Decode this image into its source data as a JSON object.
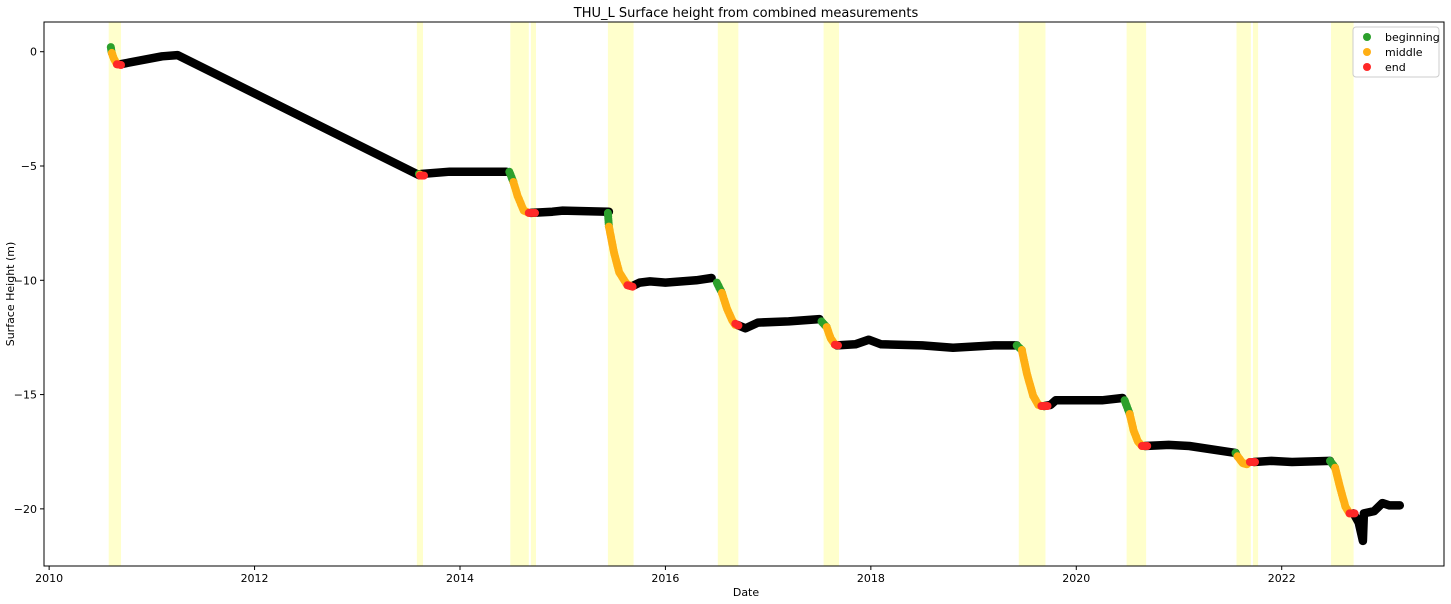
{
  "chart_data": {
    "type": "scatter",
    "title": "THU_L Surface height from combined measurements",
    "xlabel": "Date",
    "ylabel": "Surface Height (m)",
    "xlim": [
      2009.95,
      2023.58
    ],
    "ylim": [
      -22.5,
      1.3
    ],
    "xticks": [
      2010,
      2012,
      2014,
      2016,
      2018,
      2020,
      2022
    ],
    "yticks": [
      0,
      -5,
      -10,
      -15,
      -20
    ],
    "legend": {
      "position": "upper right",
      "entries": [
        "beginning",
        "middle",
        "end"
      ]
    },
    "colors": {
      "beginning": "#2ca02c",
      "middle": "#ffaf14",
      "end": "#ff2828",
      "background": "#000000",
      "shading": "#ffffcc"
    },
    "shaded_periods": [
      [
        2010.58,
        2010.7
      ],
      [
        2013.58,
        2013.64
      ],
      [
        2014.49,
        2014.67
      ],
      [
        2014.69,
        2014.74
      ],
      [
        2015.44,
        2015.69
      ],
      [
        2016.51,
        2016.71
      ],
      [
        2017.54,
        2017.69
      ],
      [
        2019.44,
        2019.7
      ],
      [
        2020.49,
        2020.68
      ],
      [
        2021.56,
        2021.7
      ],
      [
        2021.72,
        2021.77
      ],
      [
        2022.48,
        2022.7
      ]
    ],
    "background_series": [
      [
        [
          2010.69,
          -0.55
        ],
        [
          2011.1,
          -0.2
        ],
        [
          2011.25,
          -0.15
        ],
        [
          2013.6,
          -5.4
        ]
      ],
      [
        [
          2013.62,
          -5.35
        ],
        [
          2013.9,
          -5.25
        ],
        [
          2014.45,
          -5.25
        ]
      ],
      [
        [
          2014.69,
          -7.05
        ],
        [
          2014.9,
          -7.0
        ],
        [
          2015.0,
          -6.95
        ],
        [
          2015.45,
          -7.0
        ]
      ],
      [
        [
          2015.68,
          -10.25
        ],
        [
          2015.75,
          -10.1
        ],
        [
          2015.85,
          -10.05
        ],
        [
          2016.0,
          -10.1
        ],
        [
          2016.3,
          -10.0
        ],
        [
          2016.45,
          -9.9
        ]
      ],
      [
        [
          2016.7,
          -11.95
        ],
        [
          2016.78,
          -12.1
        ],
        [
          2016.9,
          -11.85
        ],
        [
          2017.2,
          -11.8
        ],
        [
          2017.5,
          -11.7
        ]
      ],
      [
        [
          2017.67,
          -12.85
        ],
        [
          2017.85,
          -12.8
        ],
        [
          2017.98,
          -12.6
        ],
        [
          2018.1,
          -12.8
        ],
        [
          2018.5,
          -12.85
        ],
        [
          2018.8,
          -12.95
        ],
        [
          2019.2,
          -12.85
        ],
        [
          2019.42,
          -12.85
        ]
      ],
      [
        [
          2019.69,
          -15.5
        ],
        [
          2019.75,
          -15.45
        ],
        [
          2019.8,
          -15.25
        ],
        [
          2019.95,
          -15.25
        ],
        [
          2020.25,
          -15.25
        ],
        [
          2020.45,
          -15.15
        ]
      ],
      [
        [
          2020.67,
          -17.25
        ],
        [
          2020.9,
          -17.2
        ],
        [
          2021.1,
          -17.25
        ],
        [
          2021.55,
          -17.55
        ]
      ],
      [
        [
          2021.73,
          -17.95
        ],
        [
          2021.9,
          -17.9
        ],
        [
          2022.1,
          -17.95
        ],
        [
          2022.47,
          -17.9
        ]
      ],
      [
        [
          2022.7,
          -20.2
        ],
        [
          2022.75,
          -20.6
        ],
        [
          2022.79,
          -21.4
        ],
        [
          2022.8,
          -20.2
        ],
        [
          2022.9,
          -20.1
        ],
        [
          2022.98,
          -19.75
        ],
        [
          2023.05,
          -19.85
        ],
        [
          2023.15,
          -19.85
        ]
      ]
    ],
    "series": [
      {
        "name": "beginning",
        "segments": [
          [
            [
              2010.6,
              0.2
            ],
            [
              2010.61,
              -0.05
            ]
          ],
          [
            [
              2013.6,
              -5.35
            ],
            [
              2013.61,
              -5.38
            ]
          ],
          [
            [
              2014.48,
              -5.25
            ],
            [
              2014.52,
              -5.7
            ]
          ],
          [
            [
              2015.44,
              -7.05
            ],
            [
              2015.45,
              -7.65
            ]
          ],
          [
            [
              2016.5,
              -10.1
            ],
            [
              2016.55,
              -10.55
            ]
          ],
          [
            [
              2017.52,
              -11.8
            ],
            [
              2017.57,
              -12.05
            ]
          ],
          [
            [
              2019.42,
              -12.85
            ],
            [
              2019.47,
              -13.05
            ]
          ],
          [
            [
              2020.47,
              -15.25
            ],
            [
              2020.52,
              -15.85
            ]
          ],
          [
            [
              2021.55,
              -17.55
            ],
            [
              2021.57,
              -17.7
            ]
          ],
          [
            [
              2022.47,
              -17.9
            ],
            [
              2022.52,
              -18.2
            ]
          ]
        ]
      },
      {
        "name": "middle",
        "segments": [
          [
            [
              2010.61,
              -0.05
            ],
            [
              2010.63,
              -0.3
            ],
            [
              2010.66,
              -0.55
            ]
          ],
          [
            [
              2013.61,
              -5.38
            ],
            [
              2013.62,
              -5.4
            ]
          ],
          [
            [
              2014.52,
              -5.7
            ],
            [
              2014.56,
              -6.3
            ],
            [
              2014.62,
              -6.95
            ],
            [
              2014.67,
              -7.05
            ]
          ],
          [
            [
              2015.45,
              -7.65
            ],
            [
              2015.5,
              -8.8
            ],
            [
              2015.55,
              -9.65
            ],
            [
              2015.62,
              -10.15
            ],
            [
              2015.66,
              -10.25
            ]
          ],
          [
            [
              2016.55,
              -10.55
            ],
            [
              2016.6,
              -11.25
            ],
            [
              2016.65,
              -11.75
            ],
            [
              2016.68,
              -11.95
            ]
          ],
          [
            [
              2017.57,
              -12.05
            ],
            [
              2017.61,
              -12.55
            ],
            [
              2017.65,
              -12.8
            ]
          ],
          [
            [
              2019.47,
              -13.05
            ],
            [
              2019.52,
              -14.1
            ],
            [
              2019.58,
              -15.05
            ],
            [
              2019.63,
              -15.45
            ],
            [
              2019.66,
              -15.5
            ]
          ],
          [
            [
              2020.52,
              -15.85
            ],
            [
              2020.56,
              -16.6
            ],
            [
              2020.6,
              -17.05
            ],
            [
              2020.64,
              -17.25
            ]
          ],
          [
            [
              2021.57,
              -17.7
            ],
            [
              2021.62,
              -18.0
            ],
            [
              2021.66,
              -18.05
            ],
            [
              2021.69,
              -17.95
            ]
          ],
          [
            [
              2022.52,
              -18.2
            ],
            [
              2022.57,
              -19.1
            ],
            [
              2022.62,
              -19.9
            ],
            [
              2022.66,
              -20.2
            ]
          ]
        ]
      },
      {
        "name": "end",
        "segments": [
          [
            [
              2010.66,
              -0.55
            ],
            [
              2010.7,
              -0.58
            ]
          ],
          [
            [
              2013.61,
              -5.42
            ],
            [
              2013.65,
              -5.42
            ]
          ],
          [
            [
              2014.67,
              -7.05
            ],
            [
              2014.73,
              -7.05
            ]
          ],
          [
            [
              2015.63,
              -10.22
            ],
            [
              2015.68,
              -10.28
            ]
          ],
          [
            [
              2016.68,
              -11.9
            ],
            [
              2016.71,
              -11.98
            ]
          ],
          [
            [
              2017.65,
              -12.82
            ],
            [
              2017.68,
              -12.85
            ]
          ],
          [
            [
              2019.66,
              -15.5
            ],
            [
              2019.72,
              -15.5
            ]
          ],
          [
            [
              2020.64,
              -17.25
            ],
            [
              2020.69,
              -17.25
            ]
          ],
          [
            [
              2021.69,
              -17.95
            ],
            [
              2021.74,
              -17.95
            ]
          ],
          [
            [
              2022.66,
              -20.2
            ],
            [
              2022.71,
              -20.2
            ]
          ]
        ]
      }
    ]
  }
}
